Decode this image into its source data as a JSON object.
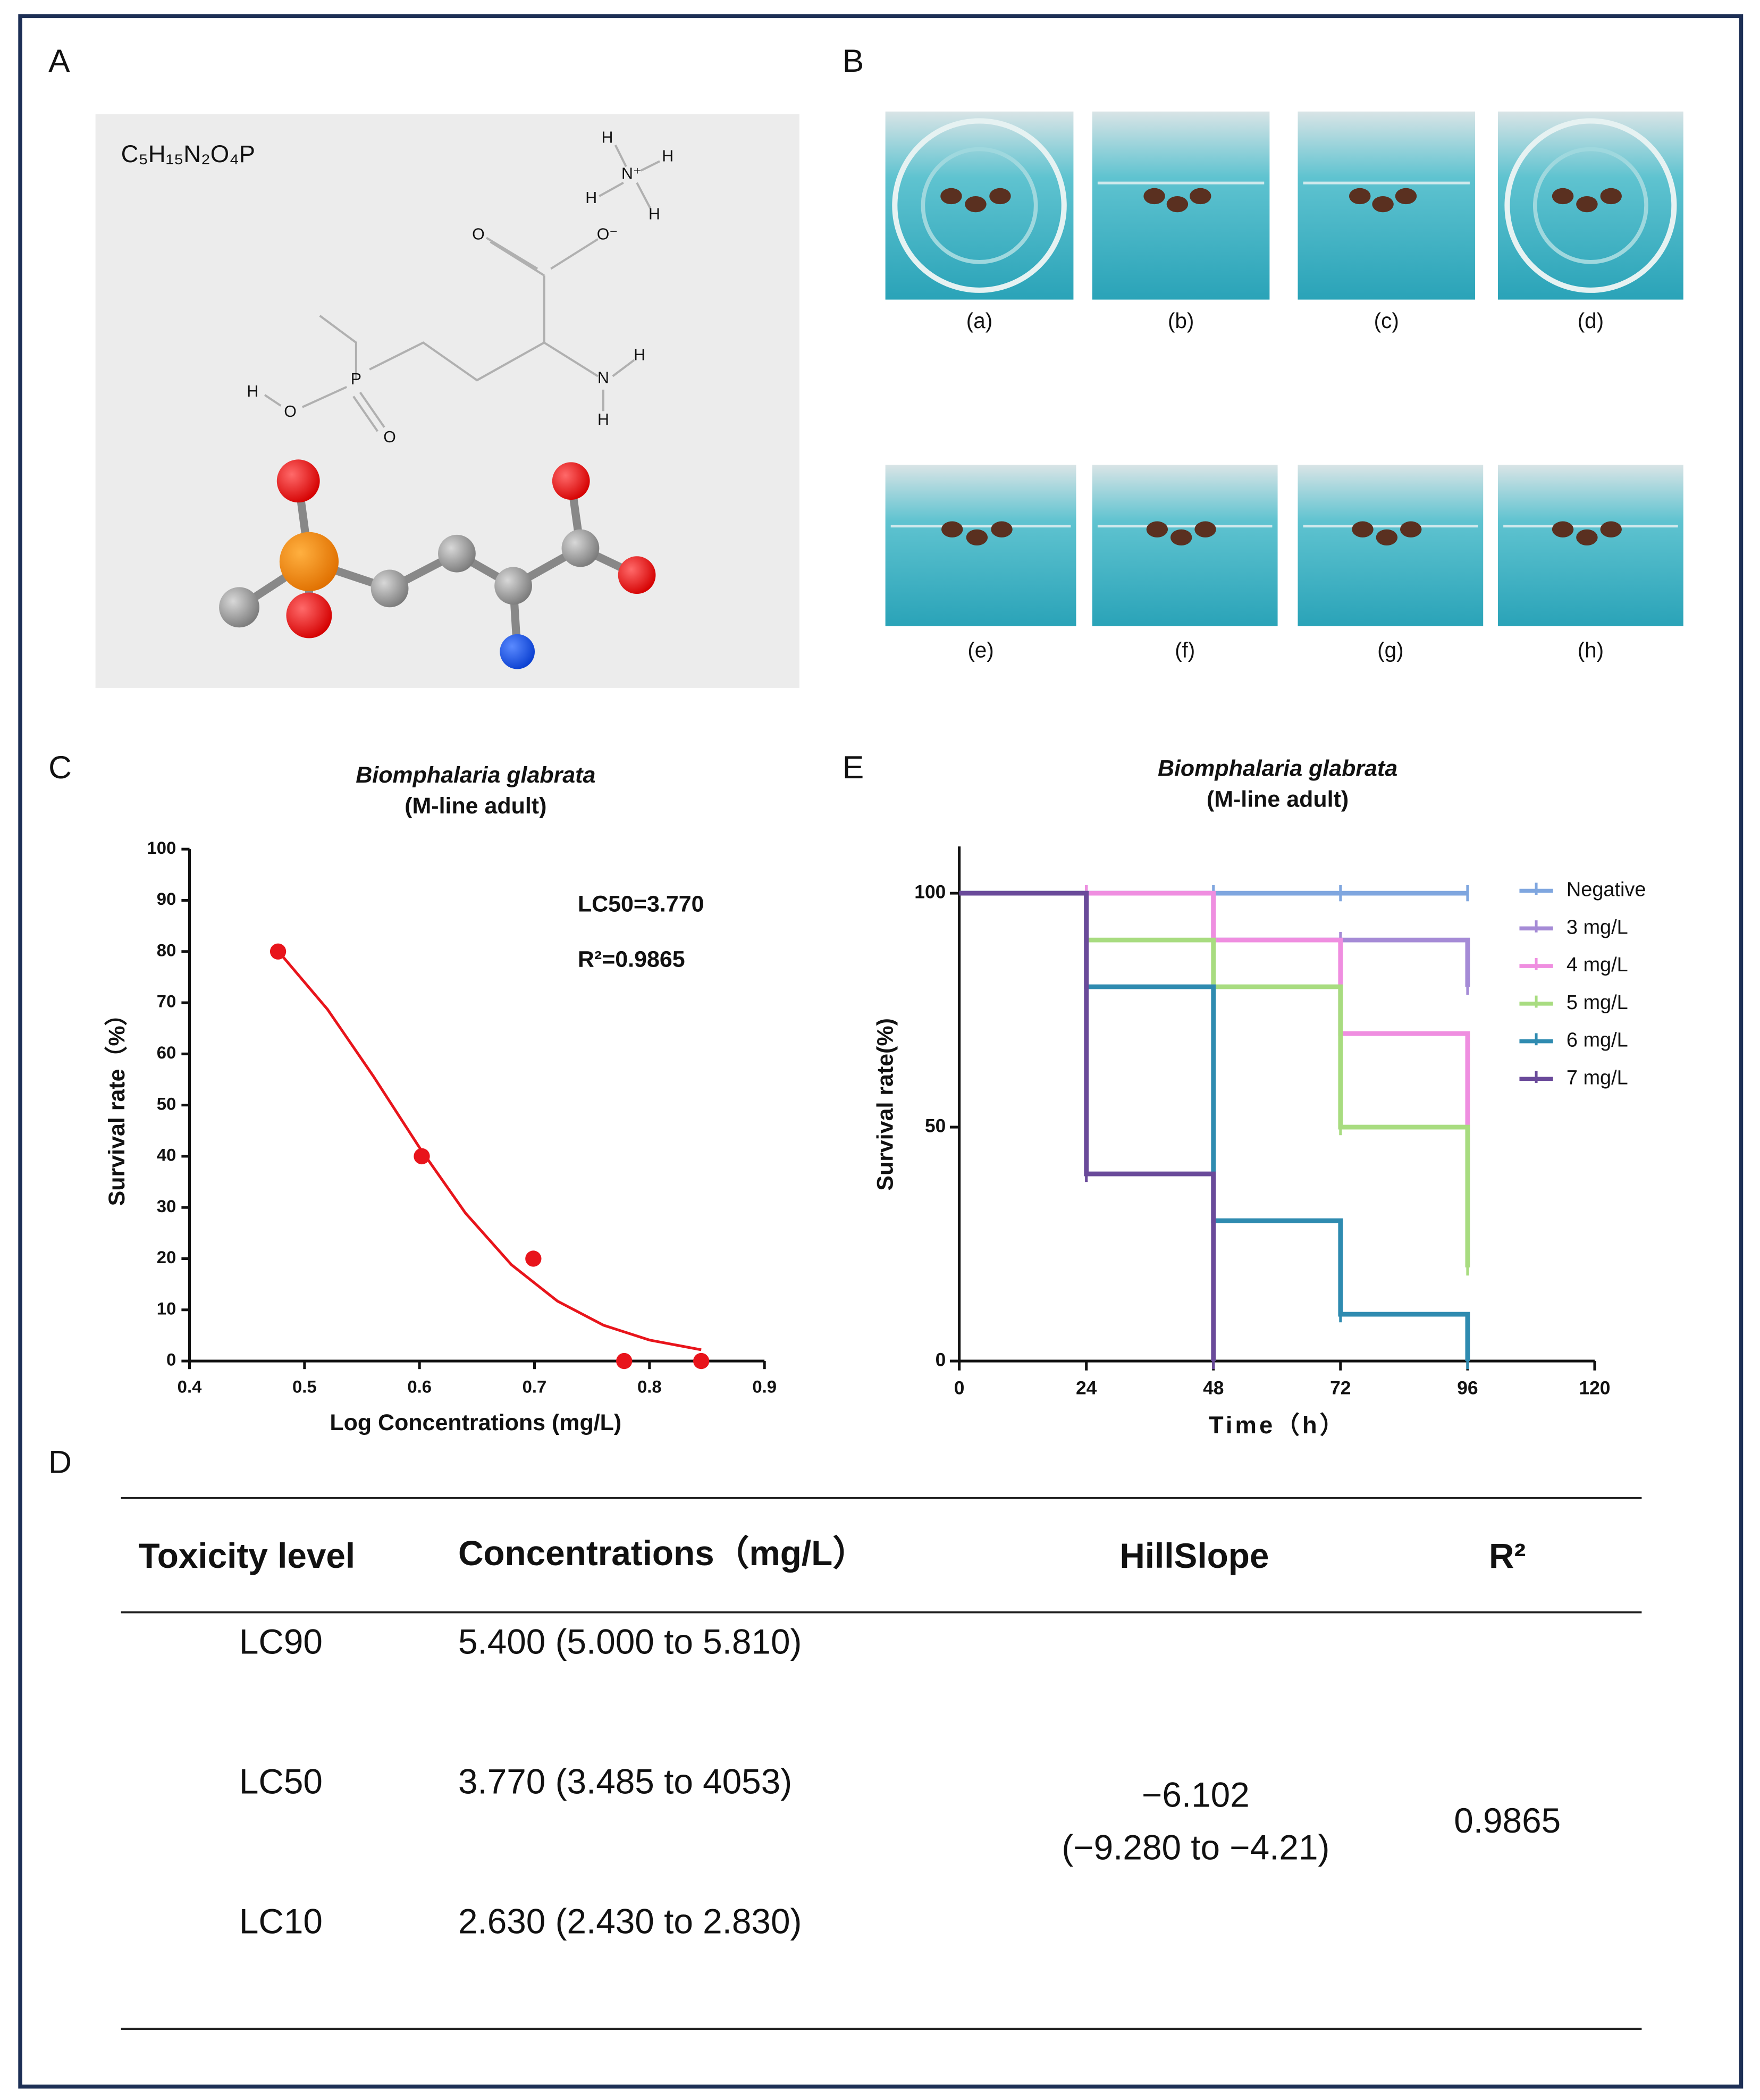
{
  "panels": {
    "a": "A",
    "b": "B",
    "c": "C",
    "d": "D",
    "e": "E"
  },
  "molecule": {
    "formula": "C₅H₁₅N₂O₄P",
    "atom_labels": [
      "H",
      "H",
      "N⁺",
      "H",
      "H",
      "O",
      "O⁻",
      "H",
      "N",
      "H",
      "H",
      "O",
      "P",
      "O"
    ]
  },
  "photos": {
    "labels": [
      "(a)",
      "(b)",
      "(c)",
      "(d)",
      "(e)",
      "(f)",
      "(g)",
      "(h)"
    ]
  },
  "chart_data": [
    {
      "type": "scatter",
      "title": "Biomphalaria glabrata",
      "subtitle": "(M-line adult)",
      "x_label": "Log Concentrations (mg/L)",
      "y_label": "Survival rate（%）",
      "x": [
        0.477,
        0.602,
        0.699,
        0.778,
        0.845
      ],
      "values": [
        80,
        40,
        20,
        0,
        0
      ],
      "color": "#e8141b",
      "fit": {
        "x": [
          0.477,
          0.52,
          0.56,
          0.6,
          0.64,
          0.68,
          0.72,
          0.76,
          0.8,
          0.845
        ],
        "values": [
          80.1,
          68.7,
          55.6,
          41.7,
          28.9,
          18.8,
          11.7,
          7.0,
          4.1,
          2.2
        ]
      },
      "annotations": [
        "LC50=3.770",
        "R²=0.9865"
      ],
      "xlim": [
        0.4,
        0.9
      ],
      "xticks": [
        0.4,
        0.5,
        0.6,
        0.7,
        0.8,
        0.9
      ],
      "ylim": [
        0,
        100
      ],
      "yticks": [
        0,
        10,
        20,
        30,
        40,
        50,
        60,
        70,
        80,
        90,
        100
      ]
    },
    {
      "type": "step",
      "title": "Biomphalaria glabrata",
      "subtitle": "(M-line adult)",
      "x_label": "Time（h）",
      "y_label": "Survival rate(%)",
      "x": [
        0,
        24,
        48,
        72,
        96
      ],
      "series": [
        {
          "name": "Negative",
          "color": "#7fa6df",
          "values": [
            100,
            100,
            100,
            100,
            100
          ]
        },
        {
          "name": "3 mg/L",
          "color": "#a58bd6",
          "values": [
            100,
            100,
            90,
            90,
            80
          ]
        },
        {
          "name": "4 mg/L",
          "color": "#ef8ee0",
          "values": [
            100,
            100,
            90,
            70,
            40
          ]
        },
        {
          "name": "5 mg/L",
          "color": "#a8dc80",
          "values": [
            100,
            90,
            80,
            50,
            20
          ]
        },
        {
          "name": "6 mg/L",
          "color": "#2f8bb0",
          "values": [
            100,
            80,
            30,
            10,
            0
          ]
        },
        {
          "name": "7 mg/L",
          "color": "#6a4a9a",
          "values": [
            100,
            40,
            0,
            null,
            null
          ]
        }
      ],
      "xlim": [
        0,
        120
      ],
      "xticks": [
        0,
        24,
        48,
        72,
        96,
        120
      ],
      "ylim": [
        0,
        110
      ],
      "yticks": [
        0,
        50,
        100
      ],
      "legend": "right"
    }
  ],
  "table": {
    "columns": [
      "Toxicity level",
      "Concentrations（mg/L）",
      "HillSlope",
      "R²"
    ],
    "rows": [
      [
        "LC90",
        "5.400 (5.000 to 5.810)"
      ],
      [
        "LC50",
        "3.770 (3.485 to 4053)"
      ],
      [
        "LC10",
        "2.630 (2.430 to 2.830)"
      ]
    ],
    "hillslope": [
      "−6.102",
      "(−9.280 to −4.21)"
    ],
    "r2": "0.9865"
  }
}
